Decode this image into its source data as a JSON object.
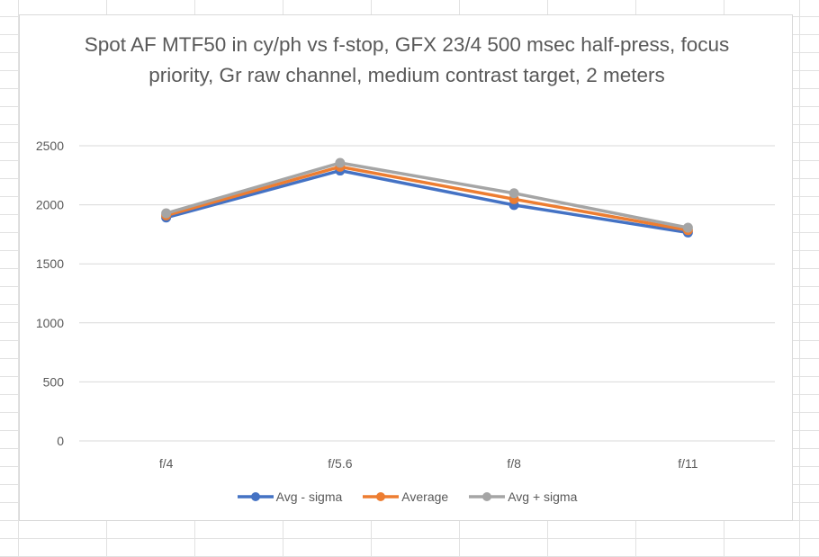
{
  "chart_data": {
    "type": "line",
    "title": "Spot AF MTF50 in cy/ph vs f-stop, GFX 23/4 500 msec half-press, focus priority, Gr raw channel, medium contrast target, 2 meters",
    "categories": [
      "f/4",
      "f/5.6",
      "f/8",
      "f/11"
    ],
    "series": [
      {
        "name": "Avg - sigma",
        "color": "#4472C4",
        "values": [
          1892,
          2290,
          1998,
          1765
        ]
      },
      {
        "name": "Average",
        "color": "#ED7D31",
        "values": [
          1910,
          2322,
          2048,
          1785
        ]
      },
      {
        "name": "Avg + sigma",
        "color": "#A5A5A5",
        "values": [
          1928,
          2355,
          2098,
          1806
        ]
      }
    ],
    "y_ticks": [
      "0",
      "500",
      "1000",
      "1500",
      "2000",
      "2500"
    ],
    "ylim": [
      0,
      2500
    ],
    "xlabel": "",
    "ylabel": "",
    "grid": true,
    "legend_position": "bottom"
  }
}
